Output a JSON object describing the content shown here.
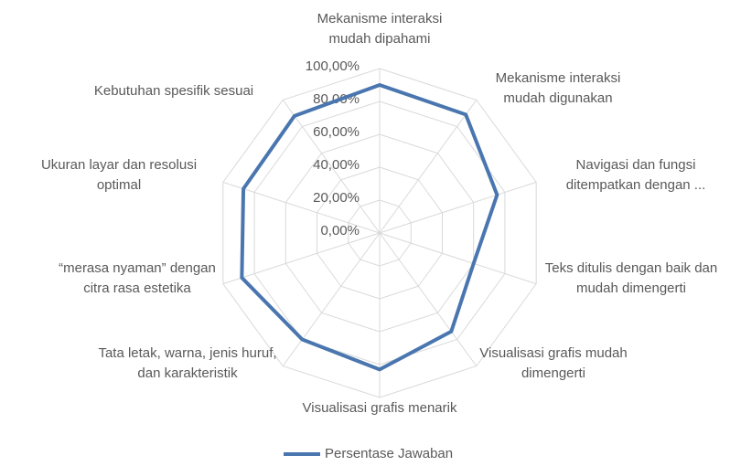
{
  "chart_data": {
    "type": "radar",
    "categories": [
      "Mekanisme interaksi mudah dipahami",
      "Mekanisme interaksi mudah digunakan",
      "Navigasi dan fungsi ditempatkan dengan ...",
      "Teks ditulis dengan baik dan mudah dimengerti",
      "Visualisasi grafis mudah dimengerti",
      "Visualisasi grafis menarik",
      "Tata letak, warna, jenis huruf, dan karakteristik",
      "“merasa nyaman” dengan citra rasa estetika",
      "Ukuran layar dan resolusi optimal",
      "Kebutuhan spesifik sesuai"
    ],
    "series": [
      {
        "name": "Persentase Jawaban",
        "color": "#4a76b0",
        "values": [
          90,
          89,
          75,
          60,
          74,
          83,
          80,
          88,
          87,
          88
        ]
      }
    ],
    "ylim": [
      0,
      100
    ],
    "yticks": [
      {
        "value": 0,
        "label": "0,00%"
      },
      {
        "value": 20,
        "label": "20,00%"
      },
      {
        "value": 40,
        "label": "40,00%"
      },
      {
        "value": 60,
        "label": "60,00%"
      },
      {
        "value": 80,
        "label": "80,00%"
      },
      {
        "value": 100,
        "label": "100,00%"
      }
    ],
    "grid": true,
    "legend": "bottom"
  }
}
